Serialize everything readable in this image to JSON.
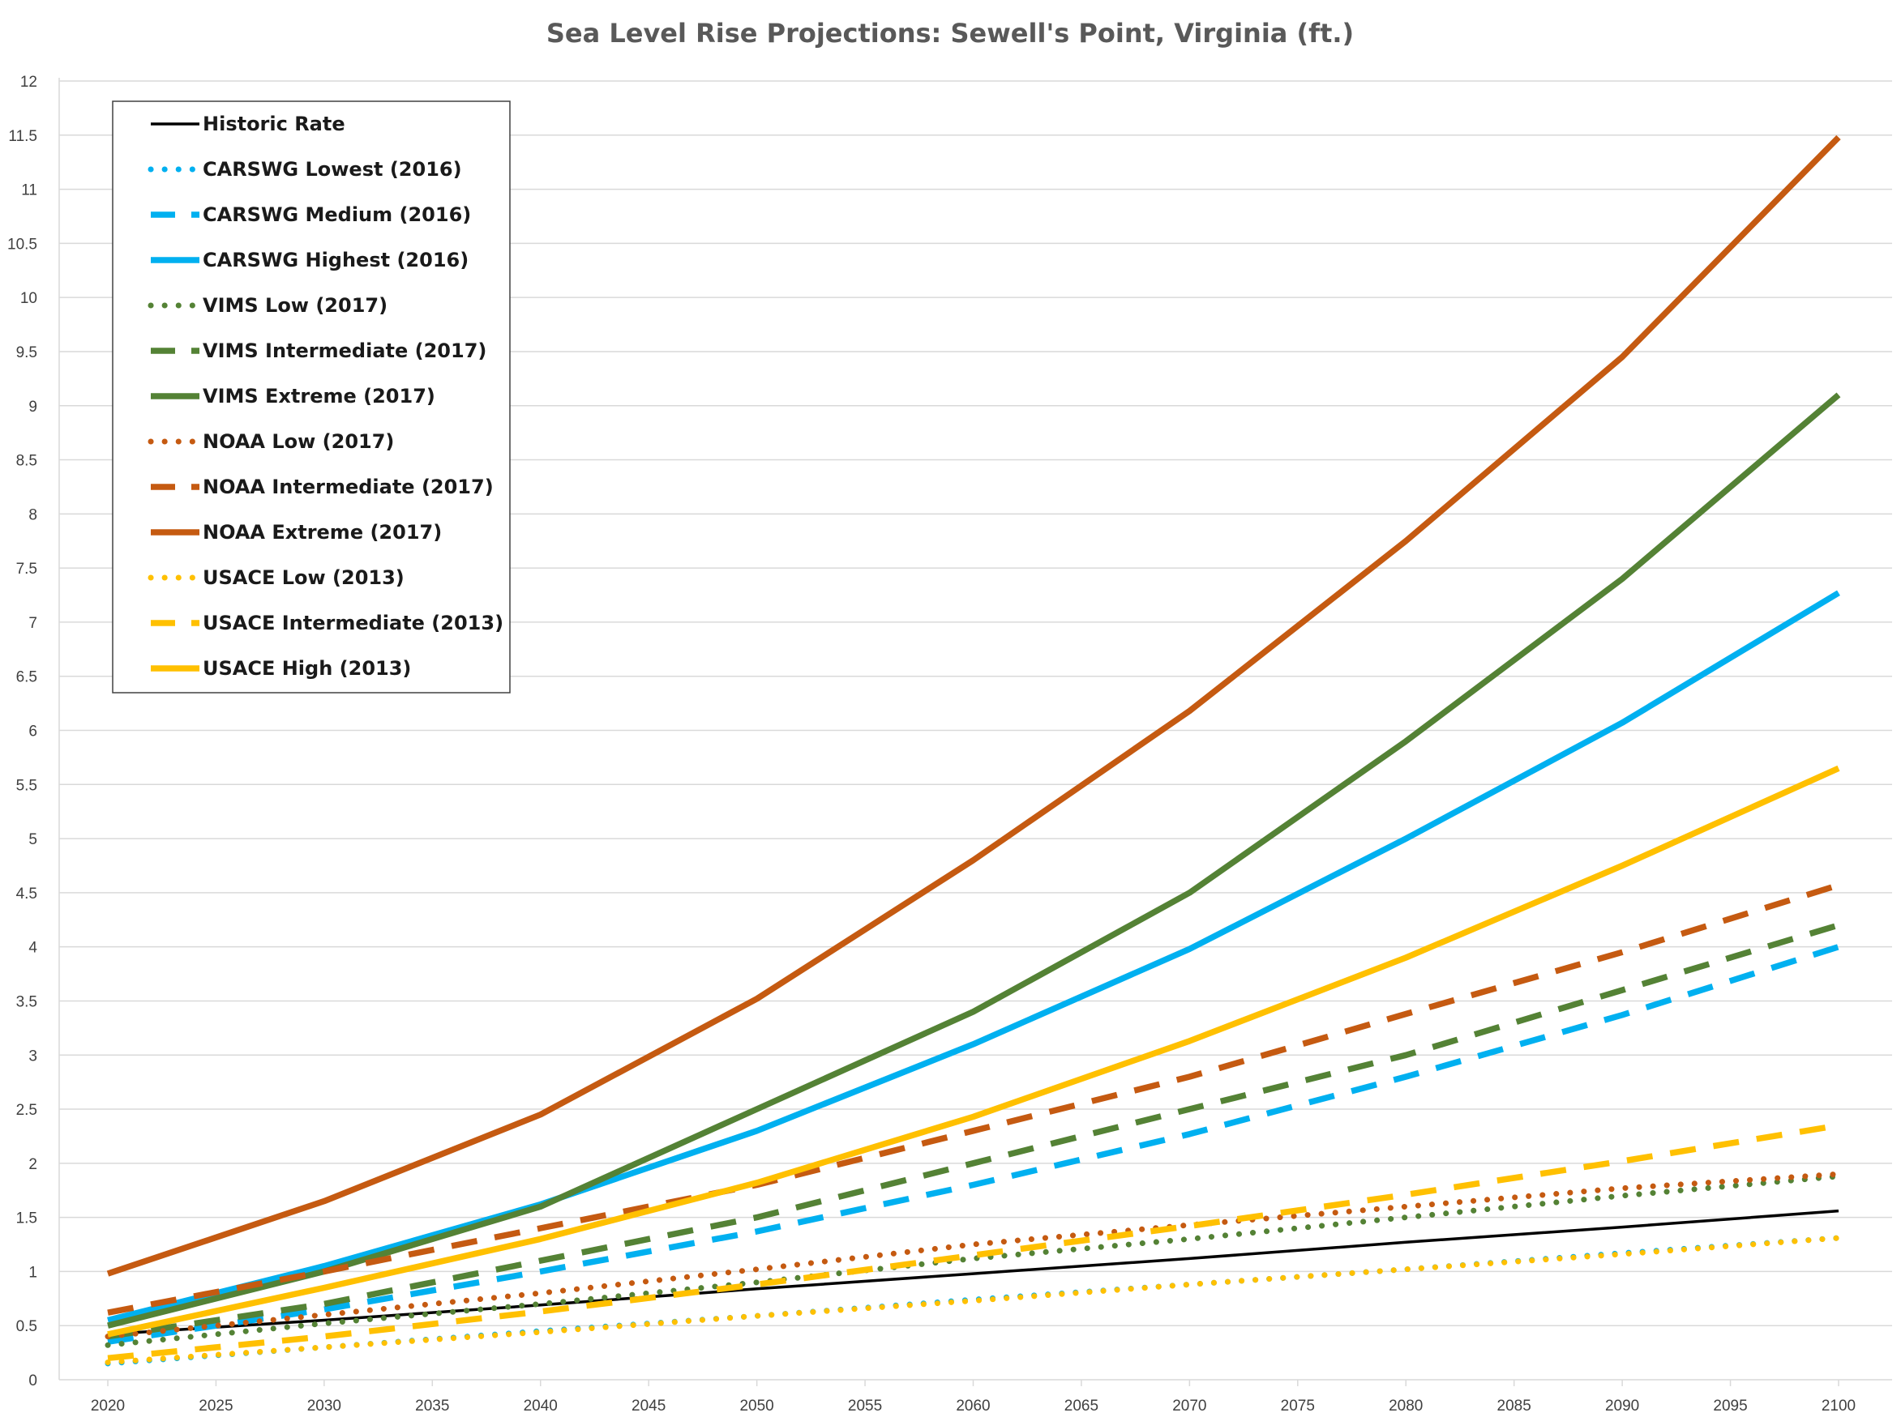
{
  "chart_data": {
    "type": "line",
    "title": "Sea Level Rise Projections: Sewell's Point, Virginia (ft.)",
    "xlabel": "",
    "ylabel": "",
    "ylim": [
      0,
      12
    ],
    "xlim": [
      2020,
      2100
    ],
    "yticks": [
      "0",
      "0.5",
      "1",
      "1.5",
      "2",
      "2.5",
      "3",
      "3.5",
      "4",
      "4.5",
      "5",
      "5.5",
      "6",
      "6.5",
      "7",
      "7.5",
      "8",
      "8.5",
      "9",
      "9.5",
      "10",
      "10.5",
      "11",
      "11.5",
      "12"
    ],
    "xticks": [
      "2020",
      "2025",
      "2030",
      "2035",
      "2040",
      "2045",
      "2050",
      "2055",
      "2060",
      "2065",
      "2070",
      "2075",
      "2080",
      "2085",
      "2090",
      "2095",
      "2100"
    ],
    "grid": true,
    "legend_position": "top-left",
    "series": [
      {
        "name": "Historic Rate",
        "color": "#000000",
        "style": "solid",
        "weight": "thin",
        "x": [
          2020,
          2030,
          2040,
          2050,
          2060,
          2070,
          2080,
          2090,
          2100
        ],
        "values": [
          0.42,
          0.55,
          0.69,
          0.84,
          0.98,
          1.12,
          1.27,
          1.41,
          1.56
        ]
      },
      {
        "name": "CARSWG Lowest (2016)",
        "color": "#00B0F0",
        "style": "round-dot",
        "weight": "medium",
        "x": [
          2020,
          2030,
          2040,
          2050,
          2060,
          2070,
          2080,
          2090,
          2100
        ],
        "values": [
          0.15,
          0.3,
          0.45,
          0.59,
          0.74,
          0.88,
          1.02,
          1.17,
          1.31
        ]
      },
      {
        "name": "CARSWG Medium (2016)",
        "color": "#00B0F0",
        "style": "dash",
        "weight": "thick",
        "x": [
          2020,
          2030,
          2040,
          2050,
          2060,
          2070,
          2080,
          2090,
          2100
        ],
        "values": [
          0.35,
          0.65,
          1.0,
          1.37,
          1.8,
          2.27,
          2.8,
          3.37,
          4.0
        ]
      },
      {
        "name": "CARSWG Highest (2016)",
        "color": "#00B0F0",
        "style": "solid",
        "weight": "thick",
        "x": [
          2020,
          2030,
          2040,
          2050,
          2060,
          2070,
          2080,
          2090,
          2100
        ],
        "values": [
          0.55,
          1.05,
          1.62,
          2.3,
          3.1,
          3.98,
          5.0,
          6.07,
          7.27
        ]
      },
      {
        "name": "VIMS Low (2017)",
        "color": "#548235",
        "style": "round-dot",
        "weight": "medium",
        "x": [
          2020,
          2030,
          2040,
          2050,
          2060,
          2070,
          2080,
          2090,
          2100
        ],
        "values": [
          0.32,
          0.52,
          0.7,
          0.9,
          1.12,
          1.3,
          1.5,
          1.7,
          1.88
        ]
      },
      {
        "name": "VIMS Intermediate (2017)",
        "color": "#548235",
        "style": "dash",
        "weight": "thick",
        "x": [
          2020,
          2030,
          2040,
          2050,
          2060,
          2070,
          2080,
          2090,
          2100
        ],
        "values": [
          0.4,
          0.7,
          1.1,
          1.5,
          2.0,
          2.5,
          3.0,
          3.6,
          4.2
        ]
      },
      {
        "name": "VIMS Extreme (2017)",
        "color": "#548235",
        "style": "solid",
        "weight": "thick",
        "x": [
          2020,
          2030,
          2040,
          2050,
          2060,
          2070,
          2080,
          2090,
          2100
        ],
        "values": [
          0.5,
          1.0,
          1.6,
          2.5,
          3.4,
          4.5,
          5.9,
          7.4,
          9.1
        ]
      },
      {
        "name": "NOAA Low (2017)",
        "color": "#C55A11",
        "style": "round-dot",
        "weight": "medium",
        "x": [
          2020,
          2030,
          2040,
          2050,
          2060,
          2070,
          2080,
          2090,
          2100
        ],
        "values": [
          0.4,
          0.6,
          0.8,
          1.02,
          1.25,
          1.43,
          1.6,
          1.77,
          1.9
        ]
      },
      {
        "name": "NOAA Intermediate (2017)",
        "color": "#C55A11",
        "style": "dash",
        "weight": "thick",
        "x": [
          2020,
          2030,
          2040,
          2050,
          2060,
          2070,
          2080,
          2090,
          2100
        ],
        "values": [
          0.62,
          1.0,
          1.4,
          1.8,
          2.3,
          2.8,
          3.38,
          3.95,
          4.57
        ]
      },
      {
        "name": "NOAA Extreme (2017)",
        "color": "#C55A11",
        "style": "solid",
        "weight": "thick",
        "x": [
          2020,
          2030,
          2040,
          2050,
          2060,
          2070,
          2080,
          2090,
          2100
        ],
        "values": [
          0.98,
          1.65,
          2.45,
          3.52,
          4.8,
          6.18,
          7.75,
          9.45,
          11.48
        ]
      },
      {
        "name": "USACE Low (2013)",
        "color": "#FFC000",
        "style": "round-dot",
        "weight": "medium",
        "x": [
          2020,
          2030,
          2040,
          2050,
          2060,
          2070,
          2080,
          2090,
          2100
        ],
        "values": [
          0.16,
          0.3,
          0.44,
          0.59,
          0.73,
          0.88,
          1.02,
          1.16,
          1.31
        ]
      },
      {
        "name": "USACE Intermediate (2013)",
        "color": "#FFC000",
        "style": "dash",
        "weight": "thick",
        "x": [
          2020,
          2030,
          2040,
          2050,
          2060,
          2070,
          2080,
          2090,
          2100
        ],
        "values": [
          0.2,
          0.4,
          0.63,
          0.88,
          1.15,
          1.42,
          1.71,
          2.02,
          2.35
        ]
      },
      {
        "name": "USACE High (2013)",
        "color": "#FFC000",
        "style": "solid",
        "weight": "thick",
        "x": [
          2020,
          2030,
          2040,
          2050,
          2060,
          2070,
          2080,
          2090,
          2100
        ],
        "values": [
          0.42,
          0.85,
          1.3,
          1.82,
          2.43,
          3.13,
          3.9,
          4.75,
          5.65
        ]
      }
    ]
  }
}
